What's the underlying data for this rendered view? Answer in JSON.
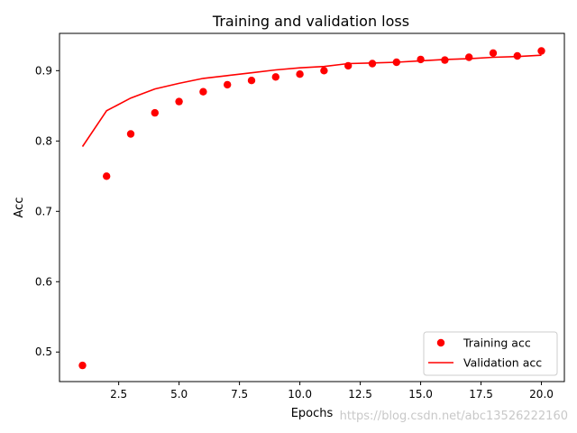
{
  "chart_data": {
    "type": "scatter",
    "title": "Training and validation loss",
    "xlabel": "Epochs",
    "ylabel": "Acc",
    "xlim": [
      0.05,
      20.95
    ],
    "ylim": [
      0.458,
      0.953
    ],
    "xticks": [
      2.5,
      5.0,
      7.5,
      10.0,
      12.5,
      15.0,
      17.5,
      20.0
    ],
    "xtick_labels": [
      "2.5",
      "5.0",
      "7.5",
      "10.0",
      "12.5",
      "15.0",
      "17.5",
      "20.0"
    ],
    "yticks": [
      0.5,
      0.6,
      0.7,
      0.8,
      0.9
    ],
    "ytick_labels": [
      "0.5",
      "0.6",
      "0.7",
      "0.8",
      "0.9"
    ],
    "grid": false,
    "legend_position": "bottom-right",
    "x": [
      1,
      2,
      3,
      4,
      5,
      6,
      7,
      8,
      9,
      10,
      11,
      12,
      13,
      14,
      15,
      16,
      17,
      18,
      19,
      20
    ],
    "series": [
      {
        "name": "Training acc",
        "style": "markers",
        "color": "#ff0000",
        "values": [
          0.481,
          0.75,
          0.81,
          0.84,
          0.856,
          0.87,
          0.88,
          0.886,
          0.891,
          0.895,
          0.9,
          0.907,
          0.91,
          0.912,
          0.916,
          0.915,
          0.919,
          0.925,
          0.921,
          0.928
        ]
      },
      {
        "name": "Validation acc",
        "style": "line",
        "color": "#ff0000",
        "values": [
          0.792,
          0.843,
          0.861,
          0.874,
          0.882,
          0.889,
          0.893,
          0.897,
          0.901,
          0.904,
          0.906,
          0.91,
          0.911,
          0.912,
          0.914,
          0.916,
          0.917,
          0.919,
          0.92,
          0.922
        ]
      }
    ]
  },
  "watermark": "https://blog.csdn.net/abc13526222160"
}
